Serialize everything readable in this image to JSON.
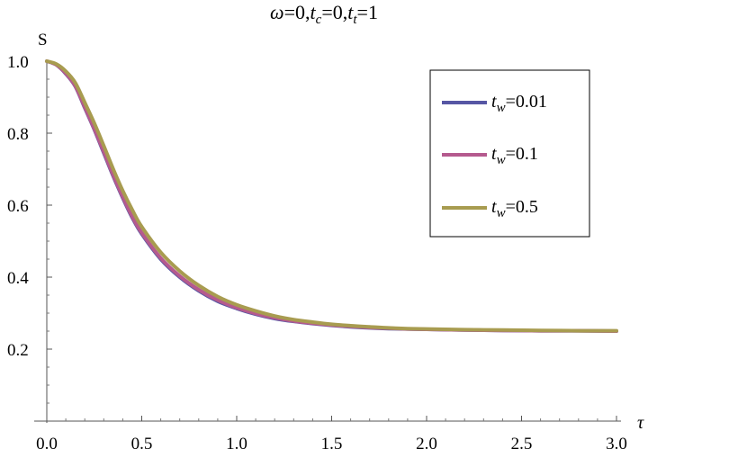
{
  "chart_data": {
    "type": "line",
    "title": {
      "omega": "ω",
      "eq1": "=0,",
      "tc_base": "t",
      "tc_sub": "c",
      "eq2": "=0,",
      "tt_base": "t",
      "tt_sub": "t",
      "eq3": "=1"
    },
    "ylabel": "S",
    "xlabel": "τ",
    "xlim": [
      0,
      3
    ],
    "ylim": [
      0,
      1.0
    ],
    "x_ticks": [
      "0.0",
      "0.5",
      "1.0",
      "1.5",
      "2.0",
      "2.5",
      "3.0"
    ],
    "y_ticks": [
      "0.2",
      "0.4",
      "0.6",
      "0.8",
      "1.0"
    ],
    "grid": false,
    "legend_position": "top-right",
    "series": [
      {
        "name": {
          "base": "t",
          "sub": "w",
          "value": "=0.01"
        },
        "color": "#5656a4",
        "x": [
          0.0,
          0.05,
          0.1,
          0.15,
          0.2,
          0.25,
          0.3,
          0.35,
          0.4,
          0.45,
          0.5,
          0.6,
          0.7,
          0.8,
          0.9,
          1.0,
          1.1,
          1.2,
          1.3,
          1.4,
          1.5,
          1.6,
          1.7,
          1.8,
          1.9,
          2.0,
          2.2,
          2.4,
          2.6,
          2.8,
          3.0
        ],
        "y": [
          1.0,
          0.99,
          0.965,
          0.93,
          0.87,
          0.81,
          0.745,
          0.68,
          0.62,
          0.565,
          0.52,
          0.45,
          0.4,
          0.362,
          0.333,
          0.313,
          0.297,
          0.285,
          0.277,
          0.271,
          0.266,
          0.262,
          0.259,
          0.257,
          0.256,
          0.255,
          0.253,
          0.252,
          0.251,
          0.251,
          0.25
        ]
      },
      {
        "name": {
          "base": "t",
          "sub": "w",
          "value": "=0.1"
        },
        "color": "#b55a8e",
        "x": [
          0.0,
          0.05,
          0.1,
          0.15,
          0.2,
          0.25,
          0.3,
          0.35,
          0.4,
          0.45,
          0.5,
          0.6,
          0.7,
          0.8,
          0.9,
          1.0,
          1.1,
          1.2,
          1.3,
          1.4,
          1.5,
          1.6,
          1.7,
          1.8,
          1.9,
          2.0,
          2.2,
          2.4,
          2.6,
          2.8,
          3.0
        ],
        "y": [
          1.0,
          0.99,
          0.966,
          0.931,
          0.872,
          0.812,
          0.748,
          0.683,
          0.623,
          0.568,
          0.523,
          0.453,
          0.403,
          0.365,
          0.336,
          0.315,
          0.299,
          0.287,
          0.278,
          0.272,
          0.267,
          0.263,
          0.26,
          0.258,
          0.256,
          0.255,
          0.253,
          0.252,
          0.251,
          0.251,
          0.25
        ]
      },
      {
        "name": {
          "base": "t",
          "sub": "w",
          "value": "=0.5"
        },
        "color": "#a89c50",
        "x": [
          0.0,
          0.05,
          0.1,
          0.15,
          0.2,
          0.25,
          0.3,
          0.35,
          0.4,
          0.45,
          0.5,
          0.6,
          0.7,
          0.8,
          0.9,
          1.0,
          1.1,
          1.2,
          1.3,
          1.4,
          1.5,
          1.6,
          1.7,
          1.8,
          1.9,
          2.0,
          2.2,
          2.4,
          2.6,
          2.8,
          3.0
        ],
        "y": [
          1.0,
          0.992,
          0.972,
          0.94,
          0.885,
          0.828,
          0.765,
          0.7,
          0.64,
          0.587,
          0.54,
          0.469,
          0.417,
          0.377,
          0.346,
          0.323,
          0.306,
          0.292,
          0.282,
          0.275,
          0.269,
          0.265,
          0.262,
          0.259,
          0.257,
          0.256,
          0.254,
          0.253,
          0.252,
          0.251,
          0.251
        ]
      }
    ]
  }
}
